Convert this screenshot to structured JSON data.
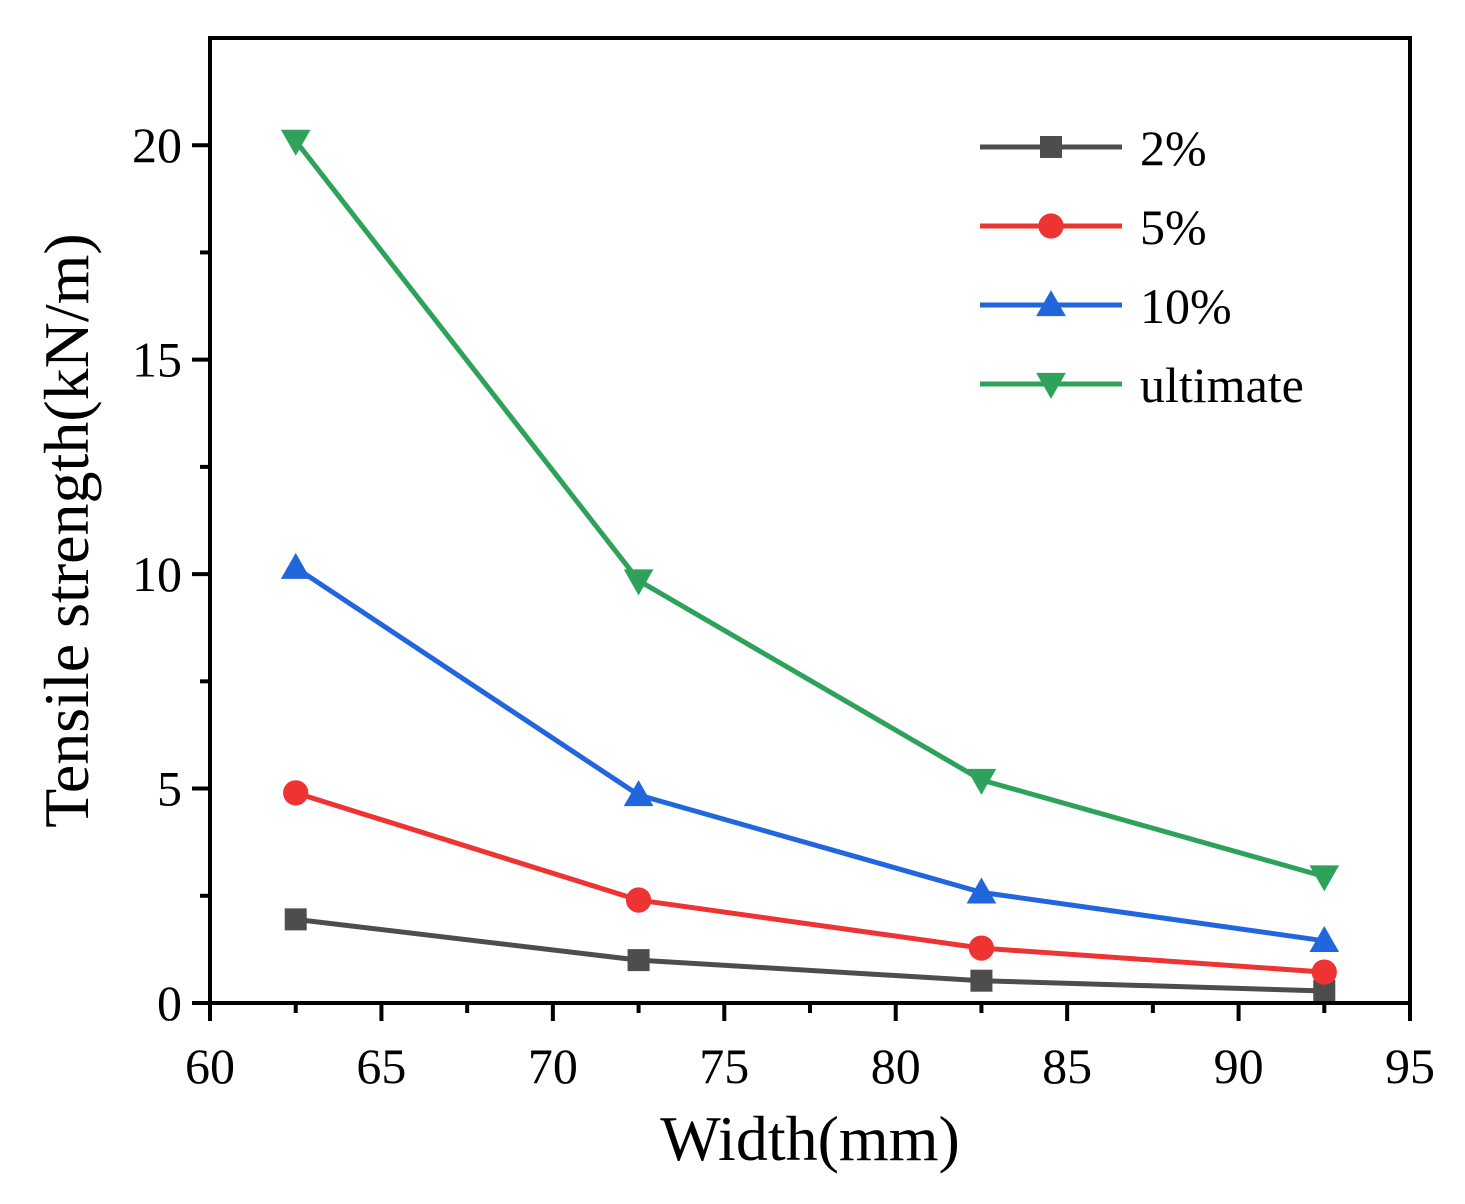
{
  "chart_data": {
    "type": "line",
    "title": "",
    "xlabel": "Width(mm)",
    "ylabel": "Tensile strength(kN/m)",
    "xlim": [
      60,
      95
    ],
    "ylim": [
      0,
      22.5
    ],
    "xticks": [
      60,
      65,
      70,
      75,
      80,
      85,
      90,
      95
    ],
    "yticks": [
      0,
      5,
      10,
      15,
      20
    ],
    "x": [
      62.5,
      72.5,
      82.5,
      92.5
    ],
    "grid": false,
    "legend_position": "top-right",
    "series": [
      {
        "name": "2%",
        "marker": "square",
        "color": "#4d4d4d",
        "values": [
          1.95,
          1.0,
          0.52,
          0.28
        ]
      },
      {
        "name": "5%",
        "marker": "circle",
        "color": "#ee3333",
        "values": [
          4.9,
          2.4,
          1.28,
          0.72
        ]
      },
      {
        "name": "10%",
        "marker": "triangle-up",
        "color": "#2266dd",
        "values": [
          10.15,
          4.85,
          2.58,
          1.45
        ]
      },
      {
        "name": "ultimate",
        "marker": "triangle-down",
        "color": "#2ea25a",
        "values": [
          20.1,
          9.85,
          5.2,
          2.95
        ]
      }
    ]
  }
}
